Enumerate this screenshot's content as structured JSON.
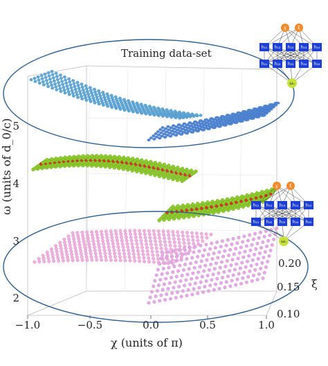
{
  "chart_data": {
    "type": "scatter3d",
    "title": "",
    "annotations": [
      "Training data-set"
    ],
    "xlabel": "χ (units of π)",
    "ylabel": "ω (units of d_0/c)",
    "zlabel": "ξ",
    "xlim": [
      -1.0,
      1.0
    ],
    "ylim": [
      1.7,
      5.8
    ],
    "zlim": [
      0.1,
      0.2
    ],
    "xticks": [
      "−1.0",
      "−0.5",
      "0.0",
      "0.5",
      "1.0"
    ],
    "yticks": [
      "2",
      "3",
      "4",
      "5"
    ],
    "zticks": [
      "0.10",
      "0.15",
      "0.20"
    ],
    "grid": true,
    "series": [
      {
        "role": "training-upper-band",
        "color": "#5fa8d8",
        "omega_range": [
          4.8,
          5.6
        ]
      },
      {
        "role": "predicted-middle-band",
        "color": "#8fcc2e",
        "highlight": "#d8342a",
        "omega_range": [
          3.6,
          4.4
        ]
      },
      {
        "role": "training-lower-band",
        "color": "#f0b0e0",
        "omega_range": [
          2.2,
          3.0
        ]
      }
    ]
  },
  "network": {
    "inputs": [
      "χ",
      "ξ"
    ],
    "hidden_layer_1": [
      "h₁₁",
      "h₁₂",
      "h₁₃",
      "h₁₄",
      "h₁₅"
    ],
    "hidden_layer_2": [
      "h₂₁",
      "h₂₂",
      "h₂₃",
      "h₂₄",
      "h₂₅"
    ],
    "output": "ωₙ",
    "colors": {
      "input": "#f08a2c",
      "hidden": "#1d3fd6",
      "output": "#c6e23a"
    }
  }
}
